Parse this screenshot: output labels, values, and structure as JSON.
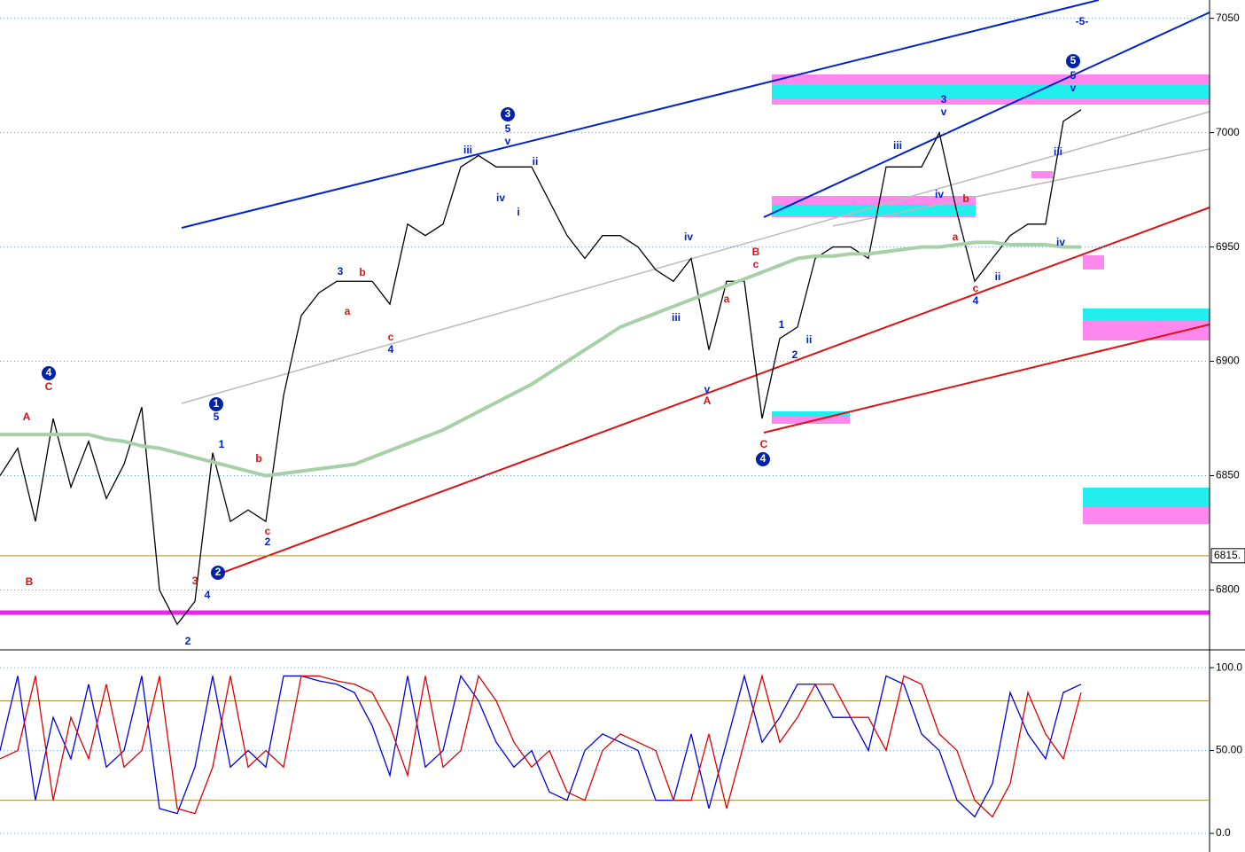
{
  "chart_data": [
    {
      "type": "line",
      "ylim": [
        6775,
        7058
      ],
      "yticks": [
        6800,
        6850,
        6900,
        6950,
        7000,
        7050
      ],
      "grid": true,
      "marker": {
        "value": 6815,
        "label": "6815."
      },
      "series": [
        {
          "color": "#000000",
          "values": [
            6850,
            6862,
            6830,
            6875,
            6845,
            6865,
            6840,
            6855,
            6880,
            6800,
            6785,
            6795,
            6860,
            6830,
            6835,
            6830,
            6885,
            6920,
            6930,
            6935,
            6935,
            6935,
            6925,
            6960,
            6955,
            6960,
            6985,
            6990,
            6985,
            6985,
            6985,
            6970,
            6955,
            6945,
            6955,
            6955,
            6950,
            6940,
            6935,
            6945,
            6905,
            6935,
            6935,
            6875,
            6910,
            6915,
            6945,
            6950,
            6950,
            6945,
            6985,
            6985,
            6985,
            7000,
            6965,
            6935,
            6945,
            6955,
            6960,
            6960,
            7005,
            7010
          ]
        },
        {
          "color": "#a8d0a8",
          "values": [
            6868,
            6868,
            6868,
            6868,
            6868,
            6868,
            6866,
            6865,
            6863,
            6862,
            6860,
            6858,
            6856,
            6854,
            6852,
            6850,
            6851,
            6852,
            6853,
            6854,
            6855,
            6858,
            6861,
            6864,
            6867,
            6870,
            6874,
            6878,
            6882,
            6886,
            6890,
            6895,
            6900,
            6905,
            6910,
            6915,
            6918,
            6921,
            6924,
            6927,
            6930,
            6933,
            6936,
            6939,
            6942,
            6945,
            6946,
            6946,
            6947,
            6947,
            6948,
            6949,
            6950,
            6950,
            6951,
            6952,
            6952,
            6951,
            6951,
            6951,
            6950,
            6950
          ]
        }
      ],
      "annotations": [
        "4",
        "C",
        "A",
        "B",
        "1",
        "5",
        "1",
        "b",
        "c",
        "2",
        "2",
        "3",
        "4",
        "2",
        "3",
        "b",
        "a",
        "c",
        "4",
        "3",
        "5",
        "v",
        "iii",
        "iv",
        "ii",
        "i",
        "iv",
        "iii",
        "v",
        "A",
        "a",
        "B",
        "c",
        "C",
        "4",
        "1",
        "2",
        "ii",
        "iii",
        "3",
        "v",
        "iv",
        "b",
        "a",
        "c",
        "4",
        "ii",
        "5",
        "5",
        "v",
        "iii",
        "iv",
        "-5-"
      ]
    },
    {
      "type": "line",
      "ylim": [
        -8,
        107
      ],
      "yticks": [
        {
          "value": 100,
          "label": "100.0"
        },
        {
          "value": 50,
          "label": "50.00"
        },
        {
          "value": 0,
          "label": "0.0"
        }
      ],
      "grid": true,
      "levels": [
        20,
        80
      ],
      "series": [
        {
          "color": "#0000dd",
          "values": [
            50,
            95,
            20,
            70,
            45,
            90,
            40,
            50,
            95,
            15,
            12,
            40,
            95,
            40,
            50,
            40,
            95,
            95,
            92,
            90,
            85,
            65,
            35,
            95,
            40,
            50,
            95,
            80,
            55,
            40,
            50,
            25,
            20,
            50,
            60,
            55,
            50,
            20,
            20,
            60,
            15,
            55,
            95,
            55,
            70,
            90,
            90,
            70,
            70,
            50,
            95,
            90,
            60,
            50,
            20,
            10,
            30,
            85,
            60,
            45,
            85,
            90
          ]
        },
        {
          "color": "#dd0000",
          "values": [
            45,
            50,
            95,
            20,
            70,
            45,
            90,
            40,
            50,
            95,
            15,
            12,
            40,
            95,
            40,
            50,
            40,
            95,
            95,
            92,
            90,
            85,
            65,
            35,
            95,
            40,
            50,
            95,
            80,
            55,
            40,
            50,
            25,
            20,
            50,
            60,
            55,
            50,
            20,
            20,
            60,
            15,
            55,
            95,
            55,
            70,
            90,
            90,
            70,
            70,
            50,
            95,
            90,
            60,
            50,
            20,
            10,
            30,
            85,
            60,
            45,
            85
          ]
        }
      ]
    }
  ]
}
